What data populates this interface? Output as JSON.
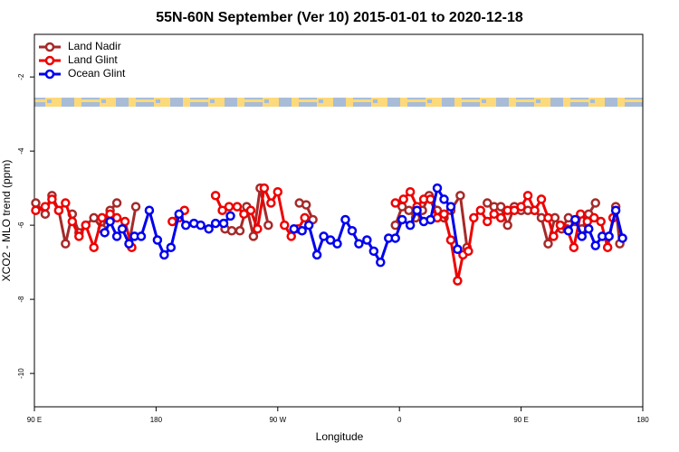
{
  "chart_data": {
    "type": "line",
    "title": "55N-60N September (Ver 10)   2015-01-01 to 2020-12-18",
    "xlabel": "Longitude",
    "ylabel": "XCO2 - MLO trend (ppm)",
    "xlim": [
      90,
      540
    ],
    "ylim": [
      -10.9,
      -0.85
    ],
    "xticks": [
      {
        "value": 90,
        "label": "90 E"
      },
      180,
      {
        "value": 270,
        "label": "90 W"
      },
      {
        "value": 360,
        "label": "0"
      },
      {
        "value": 450,
        "label": "90 E"
      },
      {
        "value": 540,
        "label": "180"
      }
    ],
    "yticks": [
      -10,
      -8,
      -6,
      -4,
      -2
    ],
    "legend": "upper left",
    "series": [
      {
        "name": "Land Nadir",
        "color": "#a52a2a",
        "x": [
          91,
          98,
          103,
          108,
          113,
          118,
          123,
          128,
          134,
          140,
          146,
          151,
          155,
          160,
          165,
          200,
          231,
          236,
          242,
          247,
          252,
          257,
          263,
          270,
          286,
          291,
          296,
          320,
          357,
          362,
          367,
          372,
          377,
          382,
          388,
          393,
          398,
          405,
          410,
          415,
          425,
          430,
          435,
          440,
          445,
          450,
          455,
          460,
          465,
          470,
          475,
          480,
          485,
          490,
          495,
          500,
          505,
          510,
          520,
          523
        ],
        "values": [
          -5.4,
          -5.7,
          -5.2,
          -5.6,
          -6.5,
          -5.7,
          -6.2,
          -6.0,
          -5.8,
          -6.1,
          -5.6,
          -5.4,
          null,
          -6.5,
          -5.5,
          null,
          -6.1,
          -6.15,
          -6.15,
          -5.5,
          -6.3,
          -5.0,
          -6.0,
          null,
          -5.4,
          -5.45,
          -5.85,
          null,
          -6.0,
          -5.5,
          -5.6,
          -5.8,
          -5.6,
          -5.2,
          -5.6,
          -5.8,
          -5.6,
          -5.2,
          -6.6,
          null,
          -5.4,
          -5.5,
          -5.5,
          -6.0,
          -5.5,
          -5.6,
          -5.6,
          -5.6,
          -5.8,
          -6.5,
          -5.8,
          -6.1,
          -5.8,
          -5.9,
          -6.1,
          -5.7,
          -5.4,
          null,
          -5.5,
          -6.5
        ]
      },
      {
        "name": "Land Glint",
        "color": "#ee0000",
        "x": [
          91,
          98,
          103,
          108,
          113,
          118,
          123,
          128,
          134,
          140,
          146,
          151,
          157,
          162,
          170,
          192,
          197,
          201,
          210,
          224,
          229,
          234,
          240,
          245,
          250,
          255,
          260,
          265,
          270,
          275,
          280,
          285,
          290,
          320,
          357,
          363,
          368,
          373,
          378,
          383,
          388,
          393,
          398,
          403,
          407,
          411,
          415,
          420,
          425,
          430,
          435,
          440,
          445,
          450,
          455,
          460,
          465,
          470,
          474,
          479,
          484,
          489,
          494,
          499,
          504,
          509,
          514,
          518
        ],
        "values": [
          -5.6,
          -5.5,
          -5.3,
          -5.6,
          -5.4,
          -5.9,
          -6.3,
          -6.0,
          -6.6,
          -5.8,
          -5.7,
          -5.8,
          -5.9,
          -6.6,
          null,
          -5.9,
          -5.8,
          -5.6,
          null,
          -5.2,
          -5.6,
          -5.5,
          -5.5,
          -5.7,
          -5.6,
          -6.1,
          -5.0,
          -5.4,
          -5.1,
          -6.0,
          -6.3,
          -6.1,
          -5.8,
          null,
          -5.4,
          -5.3,
          -5.1,
          -5.5,
          -5.3,
          -5.3,
          -5.8,
          -5.7,
          -6.4,
          -7.5,
          -6.8,
          -6.7,
          -5.8,
          -5.6,
          -5.9,
          -5.7,
          -5.8,
          -5.6,
          -5.6,
          -5.5,
          -5.2,
          -5.6,
          -5.3,
          -5.8,
          -6.3,
          -6.0,
          -6.1,
          -6.6,
          -5.7,
          -5.9,
          -5.8,
          -5.9,
          -6.6,
          -5.8
        ]
      },
      {
        "name": "Ocean Glint",
        "color": "#0000ee",
        "x": [
          142,
          146,
          151,
          155,
          160,
          164,
          169,
          175,
          181,
          186,
          191,
          197,
          202,
          208,
          213,
          219,
          224,
          230,
          235,
          245,
          282,
          288,
          293,
          299,
          304,
          309,
          314,
          320,
          325,
          330,
          336,
          341,
          346,
          352,
          357,
          362,
          368,
          373,
          378,
          383,
          388,
          393,
          398,
          403,
          440,
          485,
          490,
          495,
          500,
          505,
          510,
          515,
          520,
          525
        ],
        "values": [
          -6.2,
          -5.9,
          -6.3,
          -6.1,
          -6.5,
          -6.3,
          -6.3,
          -5.6,
          -6.4,
          -6.8,
          -6.6,
          -5.7,
          -6.0,
          -5.95,
          -6.0,
          -6.1,
          -5.95,
          -5.95,
          -5.75,
          null,
          -6.1,
          -6.15,
          -6.0,
          -6.8,
          -6.3,
          -6.4,
          -6.5,
          -5.85,
          -6.15,
          -6.5,
          -6.4,
          -6.7,
          -7.0,
          -6.35,
          -6.35,
          -5.85,
          -6.0,
          -5.6,
          -5.9,
          -5.85,
          -5.0,
          -5.3,
          -5.5,
          -6.65,
          null,
          -6.15,
          -5.85,
          -6.3,
          -6.1,
          -6.55,
          -6.3,
          -6.3,
          -5.6,
          -6.35
        ]
      }
    ]
  }
}
